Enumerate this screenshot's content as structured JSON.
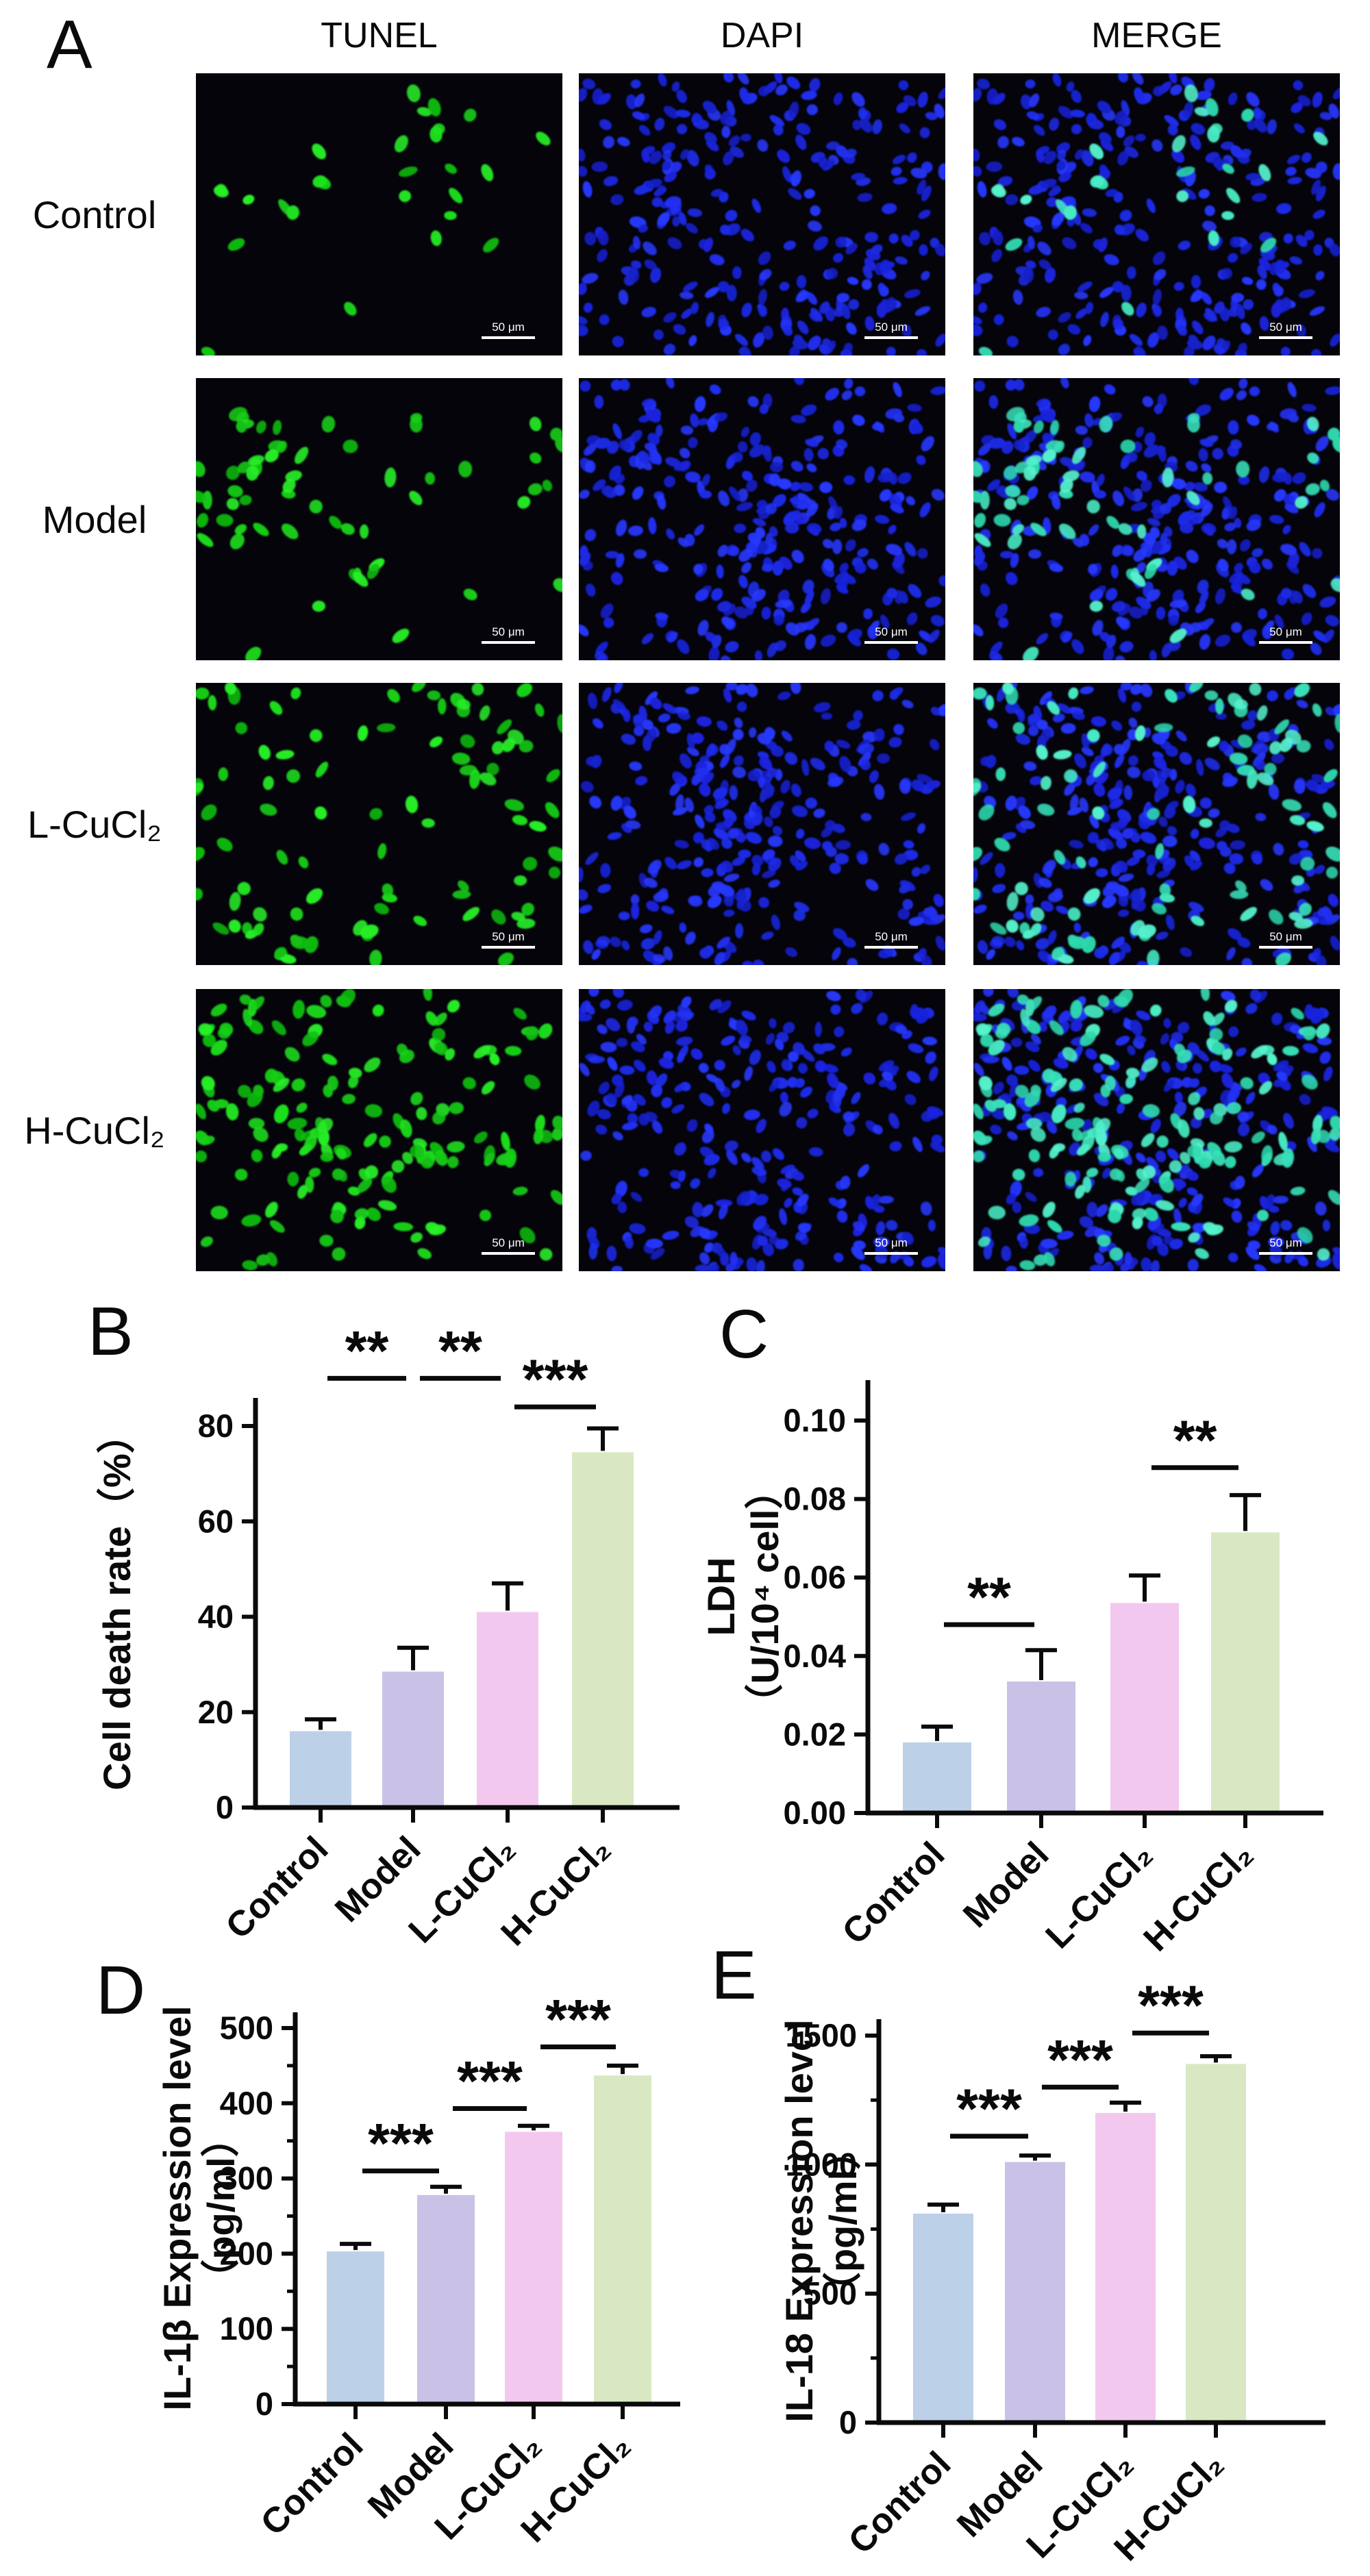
{
  "panel_a": {
    "label": "A",
    "column_headers": [
      "TUNEL",
      "DAPI",
      "MERGE"
    ],
    "row_labels": [
      "Control",
      "Model",
      "L-CuCl₂",
      "H-CuCl₂"
    ],
    "scale_bar_label": "50 μm",
    "dapi_nuclei_counts": [
      270,
      285,
      295,
      285
    ],
    "tunel_positive_counts": [
      27,
      60,
      95,
      160
    ],
    "colors": {
      "image_background": "#04040a",
      "tunel_dot": "#1edb1e",
      "dapi_dot": "#2230ee",
      "merge_positive_dot": "#41e8c2",
      "scale_bar": "#ffffff"
    }
  },
  "chart_data": [
    {
      "panel_label": "B",
      "type": "bar",
      "categories": [
        "Control",
        "Model",
        "L-CuCl₂",
        "H-CuCl₂"
      ],
      "values": [
        16,
        28.5,
        41,
        74.5
      ],
      "errors": [
        2.5,
        5,
        6,
        5
      ],
      "bar_colors": [
        "#bcd0e8",
        "#c9c2e6",
        "#f3c8ef",
        "#d9e8c2"
      ],
      "error_color": "#0a0a0a",
      "ylabel_lines": [
        "Cell death rate（%）"
      ],
      "ytick_values": [
        0,
        20,
        40,
        60,
        80
      ],
      "ytick_labels": [
        "0",
        "20",
        "40",
        "60",
        "80"
      ],
      "ylim": [
        0,
        88
      ],
      "significance": [
        {
          "from": 0,
          "to": 1,
          "label": "**",
          "y": 90
        },
        {
          "from": 1,
          "to": 2,
          "label": "**",
          "y": 90
        },
        {
          "from": 2,
          "to": 3,
          "label": "***",
          "y": 84
        }
      ]
    },
    {
      "panel_label": "C",
      "type": "bar",
      "categories": [
        "Control",
        "Model",
        "L-CuCl₂",
        "H-CuCl₂"
      ],
      "values": [
        0.018,
        0.0335,
        0.0535,
        0.0715
      ],
      "errors": [
        0.004,
        0.008,
        0.007,
        0.0095
      ],
      "bar_colors": [
        "#bcd0e8",
        "#c9c2e6",
        "#f3c8ef",
        "#d9e8c2"
      ],
      "error_color": "#0a0a0a",
      "ylabel_lines": [
        "LDH",
        "（U/10⁴ cell）"
      ],
      "ytick_values": [
        0,
        0.02,
        0.04,
        0.06,
        0.08,
        0.1
      ],
      "ytick_labels": [
        "0.00",
        "0.02",
        "0.04",
        "0.06",
        "0.08",
        "0.10"
      ],
      "ylim": [
        0,
        0.11
      ],
      "significance": [
        {
          "from": 0,
          "to": 1,
          "label": "**",
          "y": 0.048
        },
        {
          "from": 2,
          "to": 3,
          "label": "**",
          "y": 0.088
        }
      ]
    },
    {
      "panel_label": "D",
      "type": "bar",
      "categories": [
        "Control",
        "Model",
        "L-CuCl₂",
        "H-CuCl₂"
      ],
      "values": [
        203,
        278,
        362,
        437
      ],
      "errors": [
        10,
        11,
        8,
        13
      ],
      "bar_colors": [
        "#bcd0e8",
        "#c9c2e6",
        "#f3c8ef",
        "#d9e8c2"
      ],
      "error_color": "#0a0a0a",
      "ylabel_lines": [
        "IL-1β Expression level",
        "（pg/ml）"
      ],
      "ytick_values": [
        0,
        100,
        200,
        300,
        400,
        500
      ],
      "ytick_labels": [
        "0",
        "100",
        "200",
        "300",
        "400",
        "500"
      ],
      "ylim": [
        0,
        520
      ],
      "significance": [
        {
          "from": 0,
          "to": 1,
          "label": "***",
          "y": 310
        },
        {
          "from": 1,
          "to": 2,
          "label": "***",
          "y": 393
        },
        {
          "from": 2,
          "to": 3,
          "label": "***",
          "y": 475
        }
      ]
    },
    {
      "panel_label": "E",
      "type": "bar",
      "categories": [
        "Control",
        "Model",
        "L-CuCl₂",
        "H-CuCl₂"
      ],
      "values": [
        810,
        1010,
        1200,
        1390
      ],
      "errors": [
        35,
        25,
        40,
        30
      ],
      "bar_colors": [
        "#bcd0e8",
        "#c9c2e6",
        "#f3c8ef",
        "#d9e8c2"
      ],
      "error_color": "#0a0a0a",
      "ylabel_lines": [
        "IL-18 Expression level",
        "（pg/ml）"
      ],
      "ytick_values": [
        0,
        500,
        1000,
        1500
      ],
      "ytick_labels": [
        "0",
        "500",
        "1000",
        "1500"
      ],
      "ylim": [
        0,
        1560
      ],
      "significance": [
        {
          "from": 0,
          "to": 1,
          "label": "***",
          "y": 1110
        },
        {
          "from": 1,
          "to": 2,
          "label": "***",
          "y": 1300
        },
        {
          "from": 2,
          "to": 3,
          "label": "***",
          "y": 1510
        }
      ]
    }
  ]
}
